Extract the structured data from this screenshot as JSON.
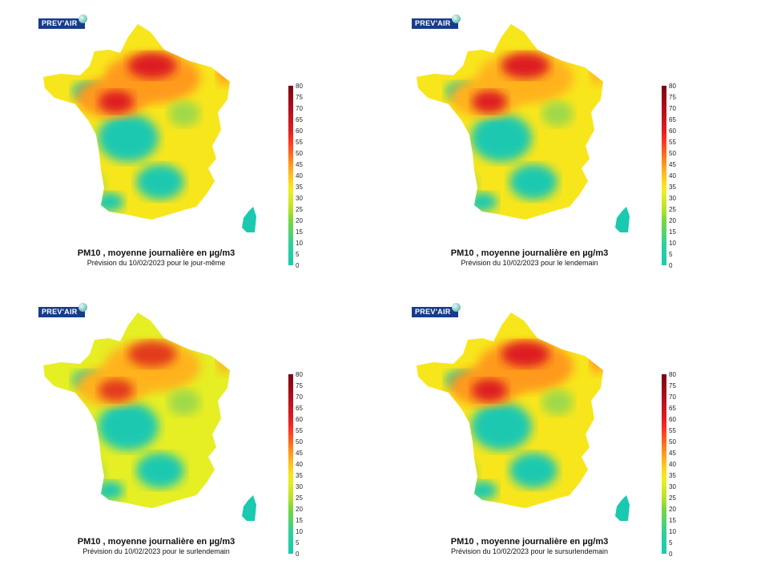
{
  "logo_text": "PREV'AIR",
  "colorbar": {
    "ticks": [
      "80",
      "75",
      "70",
      "65",
      "60",
      "55",
      "50",
      "45",
      "40",
      "35",
      "30",
      "25",
      "20",
      "15",
      "10",
      "5",
      "0"
    ],
    "colors": [
      "#1ac9b0",
      "#7bd63c",
      "#e6ee24",
      "#ffc21d",
      "#ff6a1a",
      "#dd1f22",
      "#7a0513"
    ]
  },
  "panels": [
    {
      "title": "PM10 , moyenne journalière en µg/m3",
      "subtitle": "Prévision du 10/02/2023 pour le jour-même",
      "palette": [
        "#f8e61c",
        "#ff9a1a",
        "#dd1f22",
        "#1ac9b0",
        "#9fd94a"
      ]
    },
    {
      "title": "PM10 , moyenne journalière en µg/m3",
      "subtitle": "Prévision du 10/02/2023 pour le lendemain",
      "palette": [
        "#f8e61c",
        "#ffb21d",
        "#dd1f22",
        "#1ac9b0",
        "#9fd94a"
      ]
    },
    {
      "title": "PM10 , moyenne journalière en µg/m3",
      "subtitle": "Prévision du 10/02/2023 pour le surlendemain",
      "palette": [
        "#e6ee24",
        "#ffb21d",
        "#e23a1e",
        "#1ac9b0",
        "#9fd94a"
      ]
    },
    {
      "title": "PM10 , moyenne journalière en µg/m3",
      "subtitle": "Prévision du 10/02/2023 pour le sursurlendemain",
      "palette": [
        "#f8e61c",
        "#ff9a1a",
        "#dd1f22",
        "#1ac9b0",
        "#9fd94a"
      ]
    }
  ]
}
